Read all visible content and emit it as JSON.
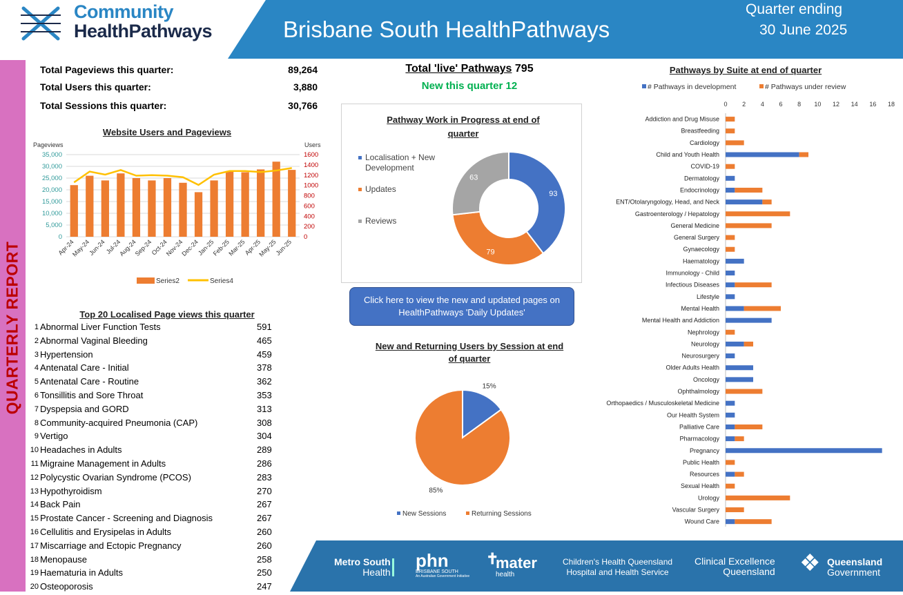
{
  "header": {
    "logo_line1": "Community",
    "logo_line2": "HealthPathways",
    "title": "Brisbane South HealthPathways",
    "quarter_line1": "Quarter ending",
    "quarter_line2": "30 June 2025"
  },
  "sidebar_text": "QUARTERLY REPORT",
  "stats": [
    {
      "label": "Total Pageviews this quarter:",
      "value": "89,264"
    },
    {
      "label": "Total Users this quarter:",
      "value": "3,880"
    },
    {
      "label": "Total Sessions this quarter:",
      "value": "30,766"
    }
  ],
  "live": {
    "label": "Total 'live' Pathways",
    "value": "795",
    "new_label": "New this quarter",
    "new_value": "12"
  },
  "cta_text": "Click here to view the new and updated pages on HealthPathways 'Daily Updates'",
  "top20": {
    "title": "Top 20 Localised Page views this quarter",
    "rows": [
      {
        "n": "1",
        "name": "Abnormal Liver Function Tests",
        "count": "591"
      },
      {
        "n": "2",
        "name": "Abnormal Vaginal Bleeding",
        "count": "465"
      },
      {
        "n": "3",
        "name": "Hypertension",
        "count": "459"
      },
      {
        "n": "4",
        "name": "Antenatal Care - Initial",
        "count": "378"
      },
      {
        "n": "5",
        "name": "Antenatal Care - Routine",
        "count": "362"
      },
      {
        "n": "6",
        "name": "Tonsillitis and Sore Throat",
        "count": "353"
      },
      {
        "n": "7",
        "name": "Dyspepsia and GORD",
        "count": "313"
      },
      {
        "n": "8",
        "name": "Community-acquired Pneumonia (CAP)",
        "count": "308"
      },
      {
        "n": "9",
        "name": "Vertigo",
        "count": "304"
      },
      {
        "n": "10",
        "name": "Headaches in Adults",
        "count": "289"
      },
      {
        "n": "11",
        "name": "Migraine Management in Adults",
        "count": "286"
      },
      {
        "n": "12",
        "name": "Polycystic Ovarian Syndrome (PCOS)",
        "count": "283"
      },
      {
        "n": "13",
        "name": "Hypothyroidism",
        "count": "270"
      },
      {
        "n": "14",
        "name": "Back Pain",
        "count": "267"
      },
      {
        "n": "15",
        "name": "Prostate Cancer - Screening and Diagnosis",
        "count": "267"
      },
      {
        "n": "16",
        "name": "Cellulitis and Erysipelas in Adults",
        "count": "260"
      },
      {
        "n": "17",
        "name": "Miscarriage and Ectopic Pregnancy",
        "count": "260"
      },
      {
        "n": "18",
        "name": "Menopause",
        "count": "258"
      },
      {
        "n": "19",
        "name": "Haematuria in Adults",
        "count": "250"
      },
      {
        "n": "20",
        "name": "Osteoporosis",
        "count": "247"
      }
    ]
  },
  "footer_logos": {
    "metro1": "Metro South",
    "metro2": "Health",
    "phn1": "phn",
    "phn2": "BRISBANE SOUTH",
    "phn3": "An Australian Government Initiative",
    "mater1": "mater",
    "mater2": "health",
    "chq1": "Children's Health Queensland",
    "chq2": "Hospital and Health Service",
    "ceq1": "Clinical Excellence",
    "ceq2": "Queensland",
    "qg1": "Queensland",
    "qg2": "Government"
  },
  "colors": {
    "blue": "#4472c4",
    "orange": "#ed7d31",
    "grey": "#a5a5a5",
    "yellow": "#ffc000",
    "banner": "#2a86c4",
    "pink": "#d871c0"
  },
  "chart_data": [
    {
      "type": "bar",
      "title": "Website Users and Pageviews",
      "ylabel": "Pageviews",
      "y2label": "Users",
      "categories": [
        "Apr-24",
        "May-24",
        "Jun-24",
        "Jul-24",
        "Aug-24",
        "Sep-24",
        "Oct-24",
        "Nov-24",
        "Dec-24",
        "Jan-25",
        "Feb-25",
        "Mar-25",
        "Apr-25",
        "May-25",
        "Jun-25"
      ],
      "series": [
        {
          "name": "Series2",
          "axis": "left",
          "kind": "bar",
          "values": [
            22000,
            26000,
            24000,
            27000,
            25000,
            24000,
            25000,
            23000,
            19000,
            24000,
            28000,
            27500,
            28700,
            32000,
            28500
          ]
        },
        {
          "name": "Series4",
          "axis": "right",
          "kind": "line",
          "values": [
            1060,
            1270,
            1210,
            1300,
            1190,
            1200,
            1190,
            1160,
            1010,
            1210,
            1280,
            1280,
            1260,
            1290,
            1340
          ]
        }
      ],
      "ylim": [
        0,
        35000
      ],
      "yticks": [
        "0",
        "5,000",
        "10,000",
        "15,000",
        "20,000",
        "25,000",
        "30,000",
        "35,000"
      ],
      "y2lim": [
        0,
        1600
      ],
      "y2ticks": [
        "0",
        "200",
        "400",
        "600",
        "800",
        "1000",
        "1200",
        "1400",
        "1600"
      ],
      "legend": "bottom"
    },
    {
      "type": "pie",
      "title": "Pathway Work in Progress at end of quarter",
      "labels": [
        "Localisation + New Development",
        "Updates",
        "Reviews"
      ],
      "values": [
        93,
        79,
        63
      ],
      "donut": true,
      "legend": "left"
    },
    {
      "type": "pie",
      "title": "New and Returning Users by Session at end of quarter",
      "labels": [
        "New Sessions",
        "Returning Sessions"
      ],
      "values": [
        15,
        85
      ],
      "value_labels": [
        "15%",
        "85%"
      ],
      "legend": "bottom"
    },
    {
      "type": "bar",
      "orientation": "horizontal",
      "stacked": true,
      "title": "Pathways by Suite at end of quarter",
      "categories": [
        "Addiction and Drug Misuse",
        "Breastfeeding",
        "Cardiology",
        "Child and Youth Health",
        "COVID-19",
        "Dermatology",
        "Endocrinology",
        "ENT/Otolaryngology, Head, and Neck",
        "Gastroenterology / Hepatology",
        "General Medicine",
        "General Surgery",
        "Gynaecology",
        "Haematology",
        "Immunology - Child",
        "Infectious Diseases",
        "Lifestyle",
        "Mental Health",
        "Mental Health and Addiction",
        "Nephrology",
        "Neurology",
        "Neurosurgery",
        "Older Adults Health",
        "Oncology",
        "Ophthalmology",
        "Orthopaedics / Musculoskeletal Medicine",
        "Our Health System",
        "Palliative Care",
        "Pharmacology",
        "Pregnancy",
        "Public Health",
        "Resources",
        "Sexual Health",
        "Urology",
        "Vascular Surgery",
        "Wound Care"
      ],
      "series": [
        {
          "name": "# Pathways in development",
          "values": [
            0,
            0,
            0,
            8,
            0,
            1,
            1,
            4,
            0,
            0,
            0,
            0,
            2,
            1,
            1,
            1,
            2,
            5,
            0,
            2,
            1,
            3,
            3,
            0,
            1,
            1,
            1,
            1,
            17,
            0,
            1,
            0,
            0,
            0,
            1
          ]
        },
        {
          "name": "# Pathways under review",
          "values": [
            1,
            1,
            2,
            1,
            1,
            0,
            3,
            1,
            7,
            5,
            1,
            1,
            0,
            0,
            4,
            0,
            4,
            0,
            1,
            1,
            0,
            0,
            0,
            4,
            0,
            0,
            3,
            1,
            0,
            1,
            1,
            1,
            7,
            2,
            4
          ]
        }
      ],
      "xlim": [
        0,
        18
      ],
      "xticks": [
        "0",
        "2",
        "4",
        "6",
        "8",
        "10",
        "12",
        "14",
        "16",
        "18"
      ],
      "legend": "top"
    }
  ]
}
